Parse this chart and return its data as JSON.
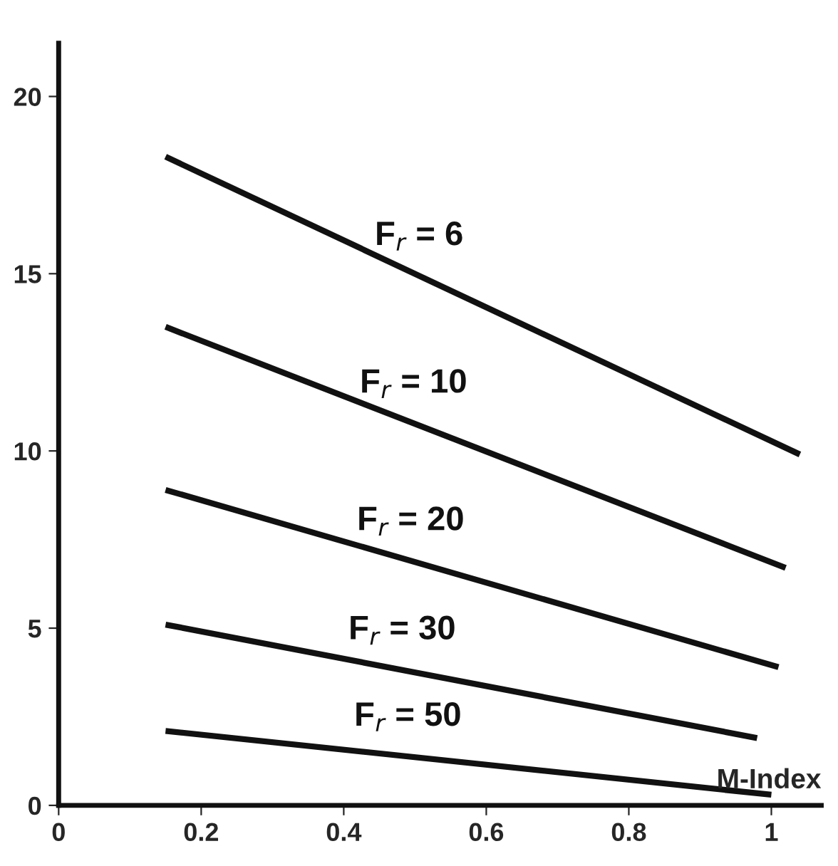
{
  "chart_data": {
    "type": "line",
    "xlabel": "M-Index",
    "xlim": [
      0,
      1.07
    ],
    "ylim": [
      0,
      21.5
    ],
    "xticks": [
      0,
      0.2,
      0.4,
      0.6,
      0.8,
      1
    ],
    "yticks": [
      0,
      5,
      10,
      15,
      20
    ],
    "grid": false,
    "legend": false,
    "series": [
      {
        "name": "F$_{r}$ = 6",
        "color": "#111111",
        "x": [
          0.15,
          1.04
        ],
        "values": [
          18.3,
          9.9
        ]
      },
      {
        "name": "F$_{r}$ = 10",
        "color": "#111111",
        "x": [
          0.15,
          1.02
        ],
        "values": [
          13.5,
          6.7
        ]
      },
      {
        "name": "F$_{r}$ = 20",
        "color": "#111111",
        "x": [
          0.15,
          1.01
        ],
        "values": [
          8.9,
          3.9
        ]
      },
      {
        "name": "F$_{r}$ = 30",
        "color": "#111111",
        "x": [
          0.15,
          0.98
        ],
        "values": [
          5.1,
          1.9
        ]
      },
      {
        "name": "F$_{r}$ = 50",
        "color": "#111111",
        "x": [
          0.15,
          1.0
        ],
        "values": [
          2.1,
          0.3
        ]
      }
    ]
  }
}
